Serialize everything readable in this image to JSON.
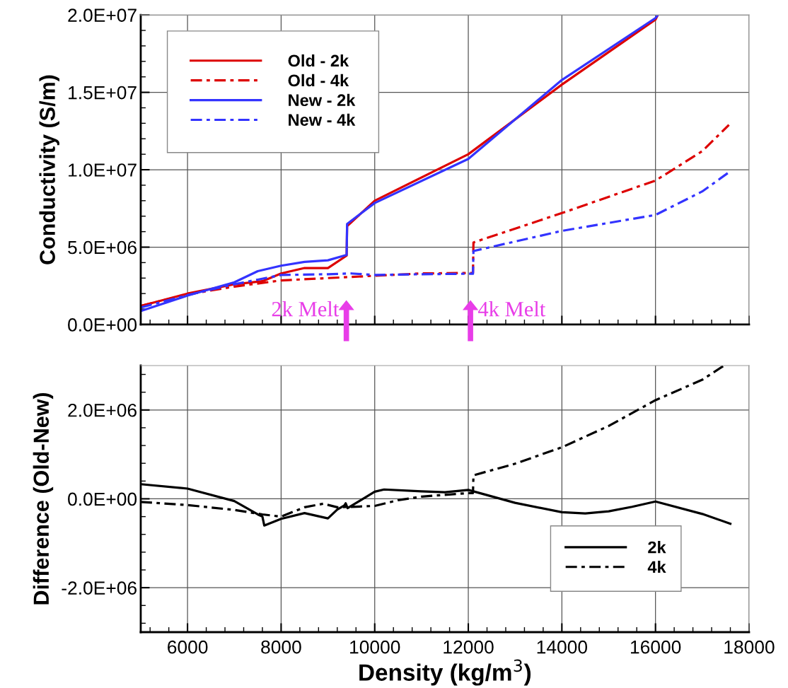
{
  "chart_data": [
    {
      "type": "line",
      "ylabel": "Conductivity (S/m)",
      "xlim": [
        5000,
        18000
      ],
      "xticks": [
        6000,
        8000,
        10000,
        12000,
        14000,
        16000,
        18000
      ],
      "ylim": [
        0,
        20000000
      ],
      "yticks": [
        {
          "value": 0,
          "label": "0.0E+00"
        },
        {
          "value": 5000000,
          "label": "5.0E+06"
        },
        {
          "value": 10000000,
          "label": "1.0E+07"
        },
        {
          "value": 15000000,
          "label": "1.5E+07"
        },
        {
          "value": 20000000,
          "label": "2.0E+07"
        }
      ],
      "tick_labels": "y",
      "grid": true,
      "legend": "top left",
      "marker": "none",
      "annotations": [
        "2k Melt",
        "4k Melt"
      ],
      "series": [
        {
          "name": "Old - 2k",
          "color": "#dd0000",
          "line_style": "solid",
          "x": [
            5000,
            5500,
            6000,
            6500,
            7000,
            7600,
            8000,
            8500,
            9000,
            9400,
            9410,
            10000,
            12000,
            14000,
            16000,
            16050
          ],
          "values": [
            1200000,
            1600000,
            2000000,
            2300000,
            2600000,
            2800000,
            3300000,
            3650000,
            3650000,
            4450000,
            6350000,
            8000000,
            11000000,
            15500000,
            19700000,
            20000000
          ]
        },
        {
          "name": "Old - 4k",
          "color": "#dd0000",
          "line_style": "dashdot",
          "x": [
            5000,
            6000,
            7000,
            8000,
            9000,
            10000,
            11000,
            12000,
            12100,
            12110,
            14000,
            16000,
            17000,
            17570
          ],
          "values": [
            1200000,
            1950000,
            2450000,
            2850000,
            3000000,
            3150000,
            3300000,
            3330000,
            3330000,
            5300000,
            7200000,
            9300000,
            11200000,
            12900000
          ]
        },
        {
          "name": "New - 2k",
          "color": "#3333ff",
          "line_style": "solid",
          "x": [
            5000,
            6000,
            7000,
            7500,
            8000,
            8500,
            9000,
            9400,
            9410,
            10000,
            12000,
            14000,
            16000,
            16050
          ],
          "values": [
            870000,
            1870000,
            2730000,
            3450000,
            3800000,
            4050000,
            4150000,
            4500000,
            6500000,
            7850000,
            10700000,
            15800000,
            19800000,
            20000000
          ]
        },
        {
          "name": "New - 4k",
          "color": "#3333ff",
          "line_style": "dashdot",
          "x": [
            5000,
            6000,
            7000,
            7500,
            8000,
            9000,
            9500,
            10000,
            11000,
            12000,
            12100,
            12110,
            14000,
            16000,
            17000,
            17600
          ],
          "values": [
            1100000,
            1900000,
            2600000,
            2900000,
            3200000,
            3250000,
            3300000,
            3200000,
            3250000,
            3280000,
            3280000,
            4750000,
            6050000,
            7080000,
            8600000,
            9900000
          ]
        }
      ]
    },
    {
      "type": "line",
      "xlabel": "Density (kg/m$^{3}$)",
      "ylabel": "Difference (Old-New)",
      "xlim": [
        5000,
        18000
      ],
      "xticks": [
        6000,
        8000,
        10000,
        12000,
        14000,
        16000,
        18000
      ],
      "ylim": [
        -3000000,
        3000000
      ],
      "yticks": [
        {
          "value": -2000000,
          "label": "-2.0E+06"
        },
        {
          "value": 0,
          "label": "0.0E+00"
        },
        {
          "value": 2000000,
          "label": "2.0E+06"
        }
      ],
      "grid": true,
      "legend": "bottom right",
      "marker": "none",
      "series": [
        {
          "name": "2k",
          "color": "#000000",
          "line_style": "solid",
          "x": [
            5000,
            6000,
            7000,
            7500,
            7600,
            7640,
            8000,
            8500,
            9000,
            9200,
            9350,
            9380,
            9420,
            10000,
            10200,
            11000,
            11500,
            12000,
            13000,
            14000,
            14500,
            15000,
            15500,
            16000,
            17000,
            17600
          ],
          "values": [
            330000,
            230000,
            -50000,
            -350000,
            -400000,
            -600000,
            -450000,
            -320000,
            -440000,
            -240000,
            -150000,
            -100000,
            -210000,
            160000,
            210000,
            170000,
            150000,
            200000,
            -90000,
            -300000,
            -330000,
            -280000,
            -180000,
            -60000,
            -340000,
            -560000
          ]
        },
        {
          "name": "4k",
          "color": "#000000",
          "line_style": "dashdot",
          "x": [
            5000,
            6000,
            7000,
            7600,
            8000,
            8500,
            8900,
            9200,
            9500,
            10000,
            10500,
            11000,
            12000,
            12100,
            12110,
            13000,
            14000,
            15000,
            16000,
            17000,
            17450
          ],
          "values": [
            -70000,
            -140000,
            -250000,
            -350000,
            -400000,
            -190000,
            -110000,
            -190000,
            -180000,
            -160000,
            -30000,
            50000,
            130000,
            130000,
            530000,
            790000,
            1160000,
            1640000,
            2220000,
            2680000,
            2990000
          ]
        }
      ]
    }
  ]
}
